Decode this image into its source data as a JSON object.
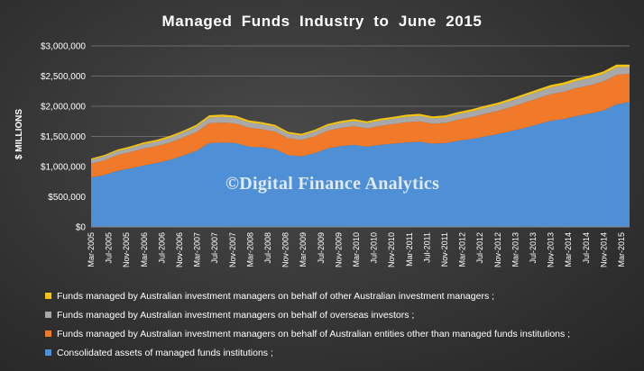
{
  "chart_data": {
    "type": "area",
    "stacked": true,
    "title": "Managed Funds Industry to June 2015",
    "ylabel": "$ MILLIONS",
    "watermark": "©Digital Finance Analytics",
    "ylim": [
      0,
      3000000
    ],
    "y_ticks": [
      "$0",
      "$500,000",
      "$1,000,000",
      "$1,500,000",
      "$2,000,000",
      "$2,500,000",
      "$3,000,000"
    ],
    "x_ticks": [
      "Mar-2005",
      "Jul-2005",
      "Nov-2005",
      "Mar-2006",
      "Jul-2006",
      "Nov-2006",
      "Mar-2007",
      "Jul-2007",
      "Nov-2007",
      "Mar-2008",
      "Jul-2008",
      "Nov-2008",
      "Mar-2009",
      "Jul-2009",
      "Nov-2009",
      "Mar-2010",
      "Jul-2010",
      "Nov-2010",
      "Mar-2011",
      "Jul-2011",
      "Nov-2011",
      "Mar-2012",
      "Jul-2012",
      "Nov-2012",
      "Mar-2013",
      "Jul-2013",
      "Nov-2013",
      "Mar-2014",
      "Jul-2014",
      "Nov-2014",
      "Mar-2015"
    ],
    "x": [
      "Mar-2005",
      "Jun-2005",
      "Sep-2005",
      "Dec-2005",
      "Mar-2006",
      "Jun-2006",
      "Sep-2006",
      "Dec-2006",
      "Mar-2007",
      "Jun-2007",
      "Sep-2007",
      "Dec-2007",
      "Mar-2008",
      "Jun-2008",
      "Sep-2008",
      "Dec-2008",
      "Mar-2009",
      "Jun-2009",
      "Sep-2009",
      "Dec-2009",
      "Mar-2010",
      "Jun-2010",
      "Sep-2010",
      "Dec-2010",
      "Mar-2011",
      "Jun-2011",
      "Sep-2011",
      "Dec-2011",
      "Mar-2012",
      "Jun-2012",
      "Sep-2012",
      "Dec-2012",
      "Mar-2013",
      "Jun-2013",
      "Sep-2013",
      "Dec-2013",
      "Mar-2014",
      "Jun-2014",
      "Sep-2014",
      "Dec-2014",
      "Mar-2015",
      "Jun-2015"
    ],
    "series": [
      {
        "name": "Consolidated assets of managed funds institutions ;",
        "color": "#4f8fd6",
        "values": [
          820000,
          860000,
          930000,
          970000,
          1020000,
          1060000,
          1110000,
          1180000,
          1260000,
          1390000,
          1400000,
          1390000,
          1330000,
          1320000,
          1290000,
          1190000,
          1170000,
          1220000,
          1300000,
          1340000,
          1360000,
          1330000,
          1360000,
          1380000,
          1400000,
          1410000,
          1380000,
          1390000,
          1430000,
          1460000,
          1500000,
          1540000,
          1590000,
          1640000,
          1700000,
          1760000,
          1790000,
          1840000,
          1880000,
          1930000,
          2030000,
          2070000
        ]
      },
      {
        "name": "Funds managed by Australian investment managers on behalf of Australian entities other than managed funds institutions ;",
        "color": "#f07a2a",
        "values": [
          230000,
          245000,
          260000,
          270000,
          280000,
          280000,
          290000,
          300000,
          310000,
          330000,
          330000,
          325000,
          315000,
          300000,
          290000,
          280000,
          270000,
          280000,
          295000,
          300000,
          310000,
          305000,
          315000,
          325000,
          335000,
          340000,
          330000,
          335000,
          350000,
          360000,
          375000,
          385000,
          400000,
          420000,
          430000,
          440000,
          450000,
          465000,
          470000,
          480000,
          490000,
          470000
        ]
      },
      {
        "name": "Funds managed by Australian investment managers on behalf of overseas investors ;",
        "color": "#a8a8a8",
        "values": [
          60000,
          62000,
          65000,
          68000,
          72000,
          75000,
          78000,
          82000,
          88000,
          95000,
          95000,
          93000,
          88000,
          84000,
          80000,
          76000,
          74000,
          77000,
          80000,
          83000,
          85000,
          84000,
          86000,
          88000,
          90000,
          91000,
          89000,
          90000,
          93000,
          95000,
          98000,
          100000,
          103000,
          107000,
          110000,
          112000,
          115000,
          117000,
          120000,
          123000,
          127000,
          110000
        ]
      },
      {
        "name": "Funds managed by Australian investment managers on behalf of other Australian investment managers ;",
        "color": "#f2c414",
        "values": [
          25000,
          26000,
          27000,
          28000,
          29000,
          30000,
          31000,
          32000,
          34000,
          36000,
          36000,
          35000,
          34000,
          33000,
          32000,
          30000,
          29000,
          30000,
          31000,
          32000,
          32000,
          32000,
          33000,
          33000,
          34000,
          34000,
          33000,
          34000,
          34000,
          35000,
          36000,
          36000,
          37000,
          38000,
          39000,
          40000,
          41000,
          41000,
          42000,
          43000,
          44000,
          40000
        ]
      }
    ],
    "grid": true,
    "legend_placement": "bottom"
  }
}
